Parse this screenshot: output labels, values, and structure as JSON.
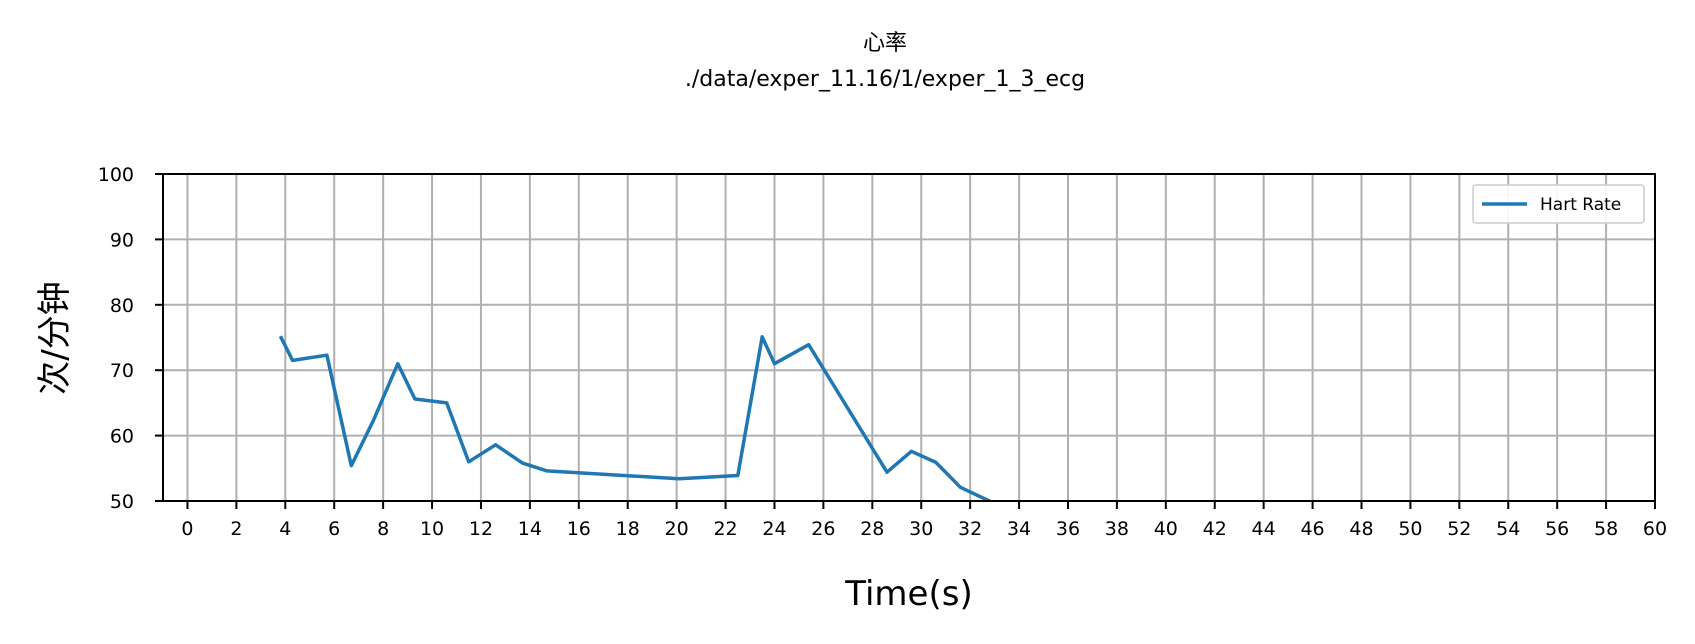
{
  "chart_data": {
    "type": "line",
    "title": "心率",
    "subtitle": "./data/exper_11.16/1/exper_1_3_ecg",
    "xlabel": "Time(s)",
    "ylabel": "次/分钟",
    "xlim": [
      -1,
      60
    ],
    "ylim": [
      50,
      100
    ],
    "xticks": [
      0,
      2,
      4,
      6,
      8,
      10,
      12,
      14,
      16,
      18,
      20,
      22,
      24,
      26,
      28,
      30,
      32,
      34,
      36,
      38,
      40,
      42,
      44,
      46,
      48,
      50,
      52,
      54,
      56,
      58,
      60
    ],
    "yticks": [
      50,
      60,
      70,
      80,
      90,
      100
    ],
    "grid": true,
    "legend_position": "top-right",
    "series": [
      {
        "name": "Hart Rate",
        "color": "#1f77b4",
        "x": [
          3.8,
          4.3,
          5.7,
          6.7,
          7.6,
          8.6,
          9.3,
          10.6,
          11.5,
          12.6,
          13.7,
          14.7,
          20.1,
          22.5,
          23.5,
          24.0,
          25.4,
          28.6,
          29.6,
          30.6,
          31.6,
          32.9
        ],
        "y": [
          75.2,
          71.5,
          72.3,
          55.4,
          62.3,
          71.0,
          65.6,
          65.0,
          56.0,
          58.6,
          55.8,
          54.6,
          53.4,
          53.9,
          75.1,
          71.0,
          73.9,
          54.4,
          57.6,
          55.9,
          52.1,
          49.8
        ]
      }
    ]
  }
}
